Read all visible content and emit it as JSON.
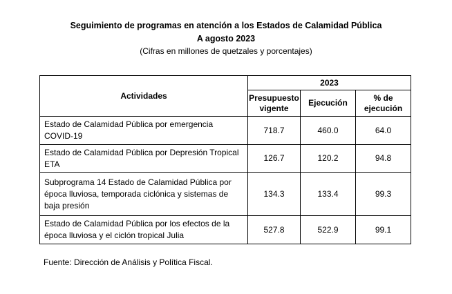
{
  "header": {
    "title": "Seguimiento de programas en atención a los Estados de Calamidad Pública",
    "subtitle": "A agosto 2023",
    "units": "(Cifras en millones de quetzales y porcentajes)"
  },
  "table": {
    "col_activities": "Actividades",
    "col_year": "2023",
    "col_budget": "Presupuesto vigente",
    "col_execution": "Ejecución",
    "col_pct": "% de ejecución",
    "rows": [
      {
        "activity": "Estado de Calamidad Pública por emergencia COVID-19",
        "budget": "718.7",
        "execution": "460.0",
        "pct": "64.0"
      },
      {
        "activity": "Estado de Calamidad Pública por Depresión Tropical ETA",
        "budget": "126.7",
        "execution": "120.2",
        "pct": "94.8"
      },
      {
        "activity": "Subprograma 14 Estado de Calamidad Pública por época lluviosa, temporada ciclónica y sistemas de baja presión",
        "budget": "134.3",
        "execution": "133.4",
        "pct": "99.3"
      },
      {
        "activity": "Estado de Calamidad Pública por los efectos de la época lluviosa y el ciclón tropical Julia",
        "budget": "527.8",
        "execution": "522.9",
        "pct": "99.1"
      }
    ]
  },
  "source": "Fuente: Dirección de Análisis y Política Fiscal."
}
